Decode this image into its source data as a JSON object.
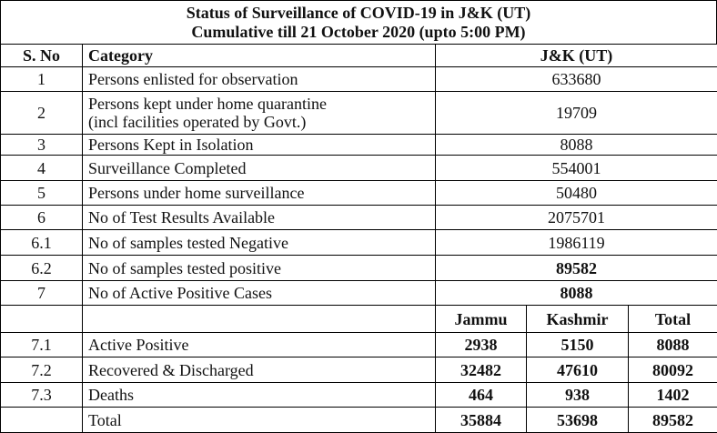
{
  "header": {
    "title": "Status of Surveillance of COVID-19 in J&K (UT)",
    "subtitle": "Cumulative till 21 October 2020 (upto 5:00 PM)"
  },
  "table": {
    "columns": [
      "S. No",
      "Category",
      "J&K (UT)"
    ],
    "rows": [
      [
        "1",
        "Persons enlisted for observation",
        "633680"
      ],
      [
        "2",
        [
          "Persons kept under home quarantine",
          "(incl facilities operated by Govt.)"
        ],
        "19709"
      ],
      [
        "3",
        "Persons Kept in Isolation",
        "8088"
      ],
      [
        "4",
        "Surveillance Completed",
        "554001"
      ],
      [
        "5",
        "Persons under home surveillance",
        "50480"
      ],
      [
        "6",
        "No of Test Results Available",
        "2075701"
      ],
      [
        "6.1",
        "No of samples tested Negative",
        "1986119"
      ],
      [
        "6.2",
        "No of samples tested positive",
        "89582"
      ],
      [
        "7",
        "No of Active Positive Cases",
        "8088"
      ]
    ]
  },
  "breakdown": {
    "columns": [
      "Jammu",
      "Kashmir",
      "Total"
    ],
    "rows": [
      [
        "7.1",
        "Active Positive",
        "2938",
        "5150",
        "8088"
      ],
      [
        "7.2",
        "Recovered & Discharged",
        "32482",
        "47610",
        "80092"
      ],
      [
        "7.3",
        "Deaths",
        "464",
        "938",
        "1402"
      ],
      [
        "",
        "Total",
        "35884",
        "53698",
        "89582"
      ]
    ]
  }
}
